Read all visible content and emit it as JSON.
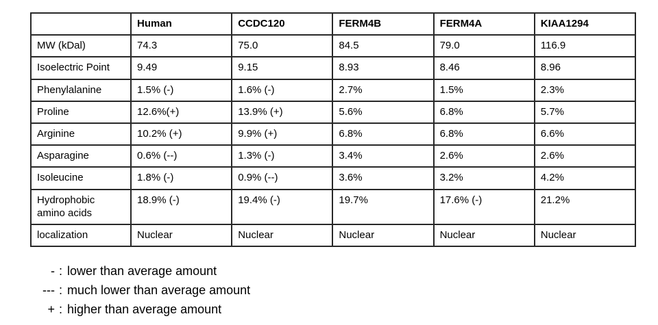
{
  "table": {
    "columns": [
      "",
      "Human",
      "CCDC120",
      "FERM4B",
      "FERM4A",
      "KIAA1294"
    ],
    "rows": [
      {
        "label": "MW (kDal)",
        "values": [
          "74.3",
          "75.0",
          "84.5",
          "79.0",
          "116.9"
        ]
      },
      {
        "label": "Isoelectric Point",
        "values": [
          "9.49",
          "9.15",
          "8.93",
          "8.46",
          "8.96"
        ]
      },
      {
        "label": "Phenylalanine",
        "values": [
          "1.5% (-)",
          "1.6% (-)",
          "2.7%",
          "1.5%",
          "2.3%"
        ]
      },
      {
        "label": "Proline",
        "values": [
          "12.6%(+)",
          "13.9% (+)",
          "5.6%",
          "6.8%",
          "5.7%"
        ]
      },
      {
        "label": "Arginine",
        "values": [
          "10.2% (+)",
          "9.9% (+)",
          "6.8%",
          "6.8%",
          "6.6%"
        ]
      },
      {
        "label": "Asparagine",
        "values": [
          "0.6% (--)",
          "1.3% (-)",
          "3.4%",
          "2.6%",
          "2.6%"
        ]
      },
      {
        "label": "Isoleucine",
        "values": [
          "1.8% (-)",
          "0.9% (--)",
          "3.6%",
          "3.2%",
          "4.2%"
        ]
      },
      {
        "label": "Hydrophobic amino acids",
        "values": [
          "18.9% (-)",
          "19.4% (-)",
          "19.7%",
          "17.6% (-)",
          "21.2%"
        ]
      },
      {
        "label": "localization",
        "values": [
          "Nuclear",
          "Nuclear",
          "Nuclear",
          "Nuclear",
          "Nuclear"
        ]
      }
    ]
  },
  "legend": {
    "separator": ":",
    "items": [
      {
        "symbol": "-",
        "text": "lower than average amount"
      },
      {
        "symbol": "---",
        "text": "much lower than average amount"
      },
      {
        "symbol": "+",
        "text": "higher than average amount"
      }
    ]
  },
  "chart_data": {
    "type": "table",
    "columns": [
      "",
      "Human",
      "CCDC120",
      "FERM4B",
      "FERM4A",
      "KIAA1294"
    ],
    "rows": [
      [
        "MW (kDal)",
        "74.3",
        "75.0",
        "84.5",
        "79.0",
        "116.9"
      ],
      [
        "Isoelectric Point",
        "9.49",
        "9.15",
        "8.93",
        "8.46",
        "8.96"
      ],
      [
        "Phenylalanine",
        "1.5% (-)",
        "1.6% (-)",
        "2.7%",
        "1.5%",
        "2.3%"
      ],
      [
        "Proline",
        "12.6%(+)",
        "13.9% (+)",
        "5.6%",
        "6.8%",
        "5.7%"
      ],
      [
        "Arginine",
        "10.2% (+)",
        "9.9% (+)",
        "6.8%",
        "6.8%",
        "6.6%"
      ],
      [
        "Asparagine",
        "0.6% (--)",
        "1.3% (-)",
        "3.4%",
        "2.6%",
        "2.6%"
      ],
      [
        "Isoleucine",
        "1.8% (-)",
        "0.9% (--)",
        "3.6%",
        "3.2%",
        "4.2%"
      ],
      [
        "Hydrophobic amino acids",
        "18.9% (-)",
        "19.4% (-)",
        "19.7%",
        "17.6% (-)",
        "21.2%"
      ],
      [
        "localization",
        "Nuclear",
        "Nuclear",
        "Nuclear",
        "Nuclear",
        "Nuclear"
      ]
    ],
    "notes": [
      "- : lower than average amount",
      "--- : much lower than average amount",
      "+ : higher than average amount"
    ]
  },
  "colors": {
    "background": "#ffffff",
    "text": "#000000",
    "table_border": "#282828"
  }
}
